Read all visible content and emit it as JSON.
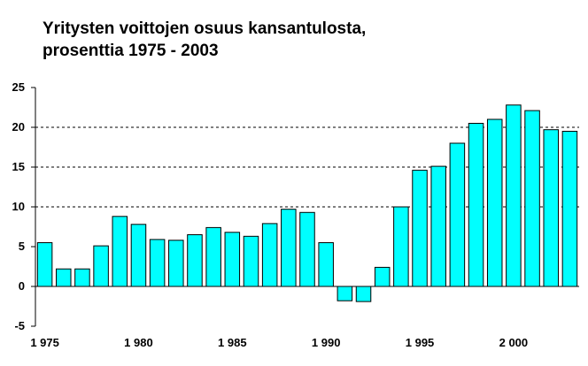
{
  "title_lines": [
    "Yritysten voittojen osuus kansantulosta,",
    "prosenttia 1975 - 2003"
  ],
  "chart_data": {
    "type": "bar",
    "title": "Yritysten voittojen osuus kansantulosta, prosenttia 1975 - 2003",
    "categories": [
      1975,
      1976,
      1977,
      1978,
      1979,
      1980,
      1981,
      1982,
      1983,
      1984,
      1985,
      1986,
      1987,
      1988,
      1989,
      1990,
      1991,
      1992,
      1993,
      1994,
      1995,
      1996,
      1997,
      1998,
      1999,
      2000,
      2001,
      2002,
      2003
    ],
    "values": [
      5.5,
      2.2,
      2.2,
      5.1,
      8.8,
      7.8,
      5.9,
      5.8,
      6.5,
      7.4,
      6.8,
      6.3,
      7.9,
      9.7,
      9.3,
      5.5,
      -1.8,
      -1.9,
      2.4,
      10.0,
      14.6,
      15.1,
      18.0,
      20.5,
      21.0,
      22.8,
      22.1,
      19.7,
      19.5
    ],
    "xtick_labels": [
      "1 975",
      "1 980",
      "1 985",
      "1 990",
      "1 995",
      "2 000"
    ],
    "yticks": [
      "-5",
      "0",
      "5",
      "10",
      "15",
      "20",
      "25"
    ],
    "ylim": [
      -5,
      25
    ],
    "bar_color": "#00FFFF",
    "grid": "dashed horizontal at 10, 15, 20"
  }
}
